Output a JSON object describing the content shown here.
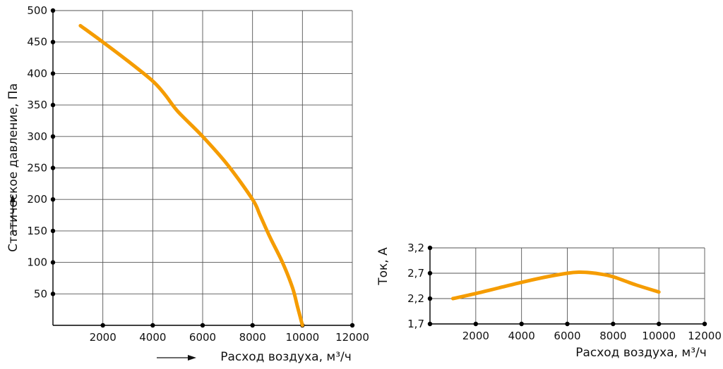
{
  "chart_data": [
    {
      "type": "line",
      "xlabel": "Расход воздуха, м³/ч",
      "ylabel": "Статическое давление, Па",
      "xlim": [
        0,
        12000
      ],
      "ylim": [
        0,
        500
      ],
      "x_ticks": [
        "2000",
        "4000",
        "6000",
        "8000",
        "10000",
        "12000"
      ],
      "y_ticks": [
        "50",
        "100",
        "150",
        "200",
        "250",
        "300",
        "350",
        "400",
        "450",
        "500"
      ],
      "grid": true,
      "series": [
        {
          "color": "#f59c00",
          "x": [
            1100,
            2000,
            3000,
            4000,
            4500,
            5000,
            6000,
            7000,
            8000,
            8300,
            8700,
            9200,
            9600,
            9800,
            10000
          ],
          "values": [
            476,
            450,
            420,
            388,
            366,
            340,
            300,
            255,
            200,
            175,
            140,
            100,
            60,
            30,
            0
          ]
        }
      ]
    },
    {
      "type": "line",
      "xlabel": "Расход воздуха, м³/ч",
      "ylabel": "Ток, А",
      "xlim": [
        0,
        12000
      ],
      "ylim": [
        1.7,
        3.2
      ],
      "x_ticks": [
        "2000",
        "4000",
        "6000",
        "8000",
        "10000",
        "12000"
      ],
      "y_ticks": [
        "1,7",
        "2,2",
        "2,7",
        "3,2"
      ],
      "grid": true,
      "series": [
        {
          "color": "#f59c00",
          "x": [
            1000,
            2000,
            3000,
            4000,
            5000,
            6000,
            6500,
            7000,
            7500,
            8000,
            9000,
            10000
          ],
          "values": [
            2.2,
            2.3,
            2.41,
            2.52,
            2.62,
            2.7,
            2.72,
            2.71,
            2.68,
            2.63,
            2.47,
            2.33
          ]
        }
      ]
    }
  ]
}
